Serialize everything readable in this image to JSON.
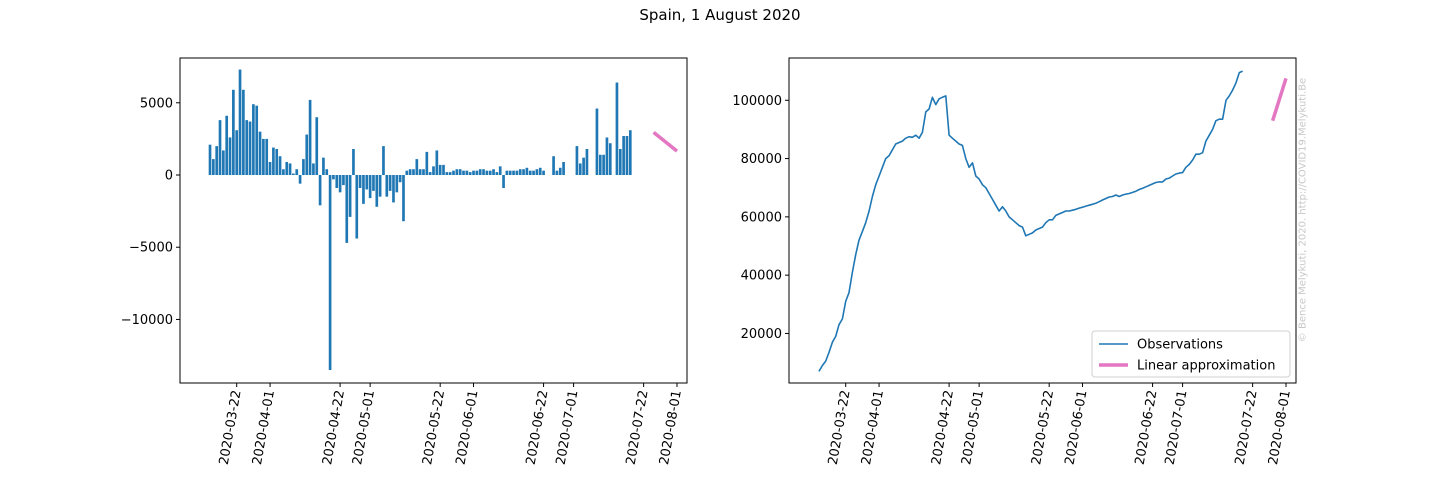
{
  "figure": {
    "title": "Spain, 1 August 2020",
    "watermark": "© Bence Melykuti, 2020. http://COVID19.Melykuti.Be"
  },
  "colors": {
    "bar": "#1f77b4",
    "observations": "#1f77b4",
    "linear_approximation": "#e377c2"
  },
  "chart_data": [
    {
      "type": "bar",
      "title": "",
      "xlabel": "",
      "ylabel": "",
      "x_start": "2020-03-14",
      "x_end": "2020-08-01",
      "xlim": [
        "2020-03-05",
        "2020-08-04"
      ],
      "ylim": [
        -14400,
        8100
      ],
      "x_ticks": [
        "2020-03-22",
        "2020-04-01",
        "2020-04-22",
        "2020-05-01",
        "2020-05-22",
        "2020-06-01",
        "2020-06-22",
        "2020-07-01",
        "2020-07-22",
        "2020-08-01"
      ],
      "y_ticks": [
        5000,
        0,
        -5000,
        -10000
      ],
      "y_tick_labels": [
        "5000",
        "0",
        "−5000",
        "−10000"
      ],
      "values": [
        2100,
        1100,
        2000,
        3800,
        1700,
        4100,
        2600,
        5900,
        3100,
        7300,
        5900,
        3800,
        3700,
        4900,
        4800,
        3000,
        2500,
        2500,
        900,
        1900,
        1800,
        1300,
        400,
        900,
        800,
        100,
        400,
        -600,
        1100,
        2800,
        5200,
        800,
        4000,
        -2100,
        1200,
        400,
        -13500,
        -300,
        -900,
        -1200,
        -700,
        -4700,
        -2900,
        1800,
        -4400,
        -900,
        -2000,
        -1000,
        -1600,
        -1100,
        -2200,
        -1500,
        2000,
        -1500,
        -1100,
        -1900,
        -1200,
        -500,
        -3200,
        300,
        400,
        400,
        1100,
        400,
        400,
        1600,
        200,
        600,
        1700,
        700,
        700,
        200,
        200,
        300,
        400,
        400,
        300,
        300,
        200,
        300,
        300,
        400,
        400,
        300,
        300,
        400,
        200,
        600,
        -900,
        300,
        300,
        300,
        300,
        400,
        400,
        500,
        300,
        300,
        400,
        500,
        300,
        0,
        0,
        1300,
        300,
        500,
        900,
        0,
        0,
        0,
        2000,
        800,
        1200,
        1800,
        0,
        0,
        4600,
        1400,
        1400,
        2600,
        2200,
        0,
        6400,
        1800,
        2700,
        2700,
        3100
      ],
      "series": [
        {
          "name": "Linear approximation",
          "x": [
            "2020-07-25",
            "2020-08-01"
          ],
          "y": [
            2950,
            1650
          ]
        }
      ]
    },
    {
      "type": "line",
      "title": "",
      "xlabel": "",
      "ylabel": "",
      "x_start": "2020-03-14",
      "x_end": "2020-08-01",
      "xlim": [
        "2020-03-05",
        "2020-08-04"
      ],
      "ylim": [
        3000,
        114500
      ],
      "x_ticks": [
        "2020-03-22",
        "2020-04-01",
        "2020-04-22",
        "2020-05-01",
        "2020-05-22",
        "2020-06-01",
        "2020-06-22",
        "2020-07-01",
        "2020-07-22",
        "2020-08-01"
      ],
      "y_ticks": [
        100000,
        80000,
        60000,
        40000,
        20000
      ],
      "y_tick_labels": [
        "100000",
        "80000",
        "60000",
        "40000",
        "20000"
      ],
      "legend": "lower right",
      "series": [
        {
          "name": "Observations",
          "values": [
            7000,
            9000,
            10500,
            13500,
            17000,
            19000,
            23000,
            25000,
            31000,
            34000,
            41000,
            47000,
            52000,
            55000,
            58000,
            62000,
            67000,
            71000,
            74000,
            77000,
            80000,
            81000,
            83000,
            85000,
            85500,
            86000,
            87000,
            87500,
            87300,
            88000,
            87000,
            89000,
            96000,
            97000,
            101000,
            98500,
            100500,
            101000,
            101500,
            88000,
            87000,
            86000,
            85000,
            84500,
            80000,
            77000,
            78500,
            74000,
            73000,
            71000,
            70000,
            68000,
            66000,
            64000,
            62000,
            63500,
            62000,
            60000,
            59000,
            58000,
            57000,
            56500,
            53500,
            54000,
            54500,
            55500,
            56000,
            56500,
            58000,
            59000,
            59000,
            60500,
            61000,
            61500,
            62000,
            62000,
            62300,
            62600,
            63000,
            63300,
            63700,
            64000,
            64300,
            64700,
            65200,
            65800,
            66300,
            66800,
            67000,
            67500,
            67000,
            67500,
            67800,
            68000,
            68400,
            68800,
            69400,
            69800,
            70300,
            70800,
            71300,
            71800,
            72000,
            72000,
            73000,
            73300,
            74000,
            74700,
            75000,
            75200,
            77000,
            78000,
            79500,
            81500,
            81500,
            82000,
            86000,
            88000,
            90000,
            93000,
            93500,
            93500,
            100000,
            101500,
            103500,
            106000,
            109500,
            110000
          ]
        },
        {
          "name": "Linear approximation",
          "x": [
            "2020-07-28",
            "2020-08-01"
          ],
          "y": [
            93000,
            107500
          ]
        }
      ]
    }
  ]
}
